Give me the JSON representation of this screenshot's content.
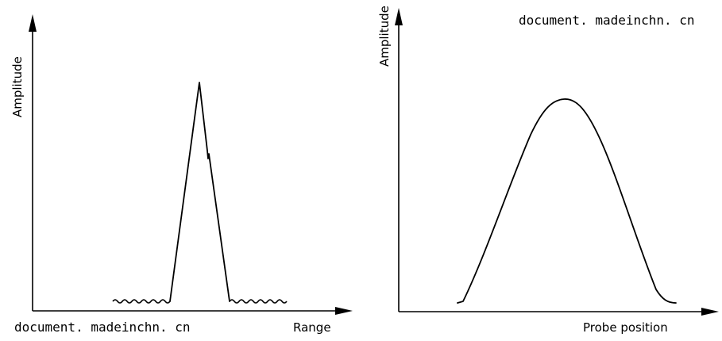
{
  "figure": {
    "left_panel": {
      "y_axis_label": "Amplitude",
      "x_axis_label": "Range",
      "watermark": "document. madeinchn. cn"
    },
    "right_panel": {
      "y_axis_label": "Amplitude",
      "x_axis_label": "Probe position",
      "watermark": "document. madeinchn. cn"
    }
  }
}
